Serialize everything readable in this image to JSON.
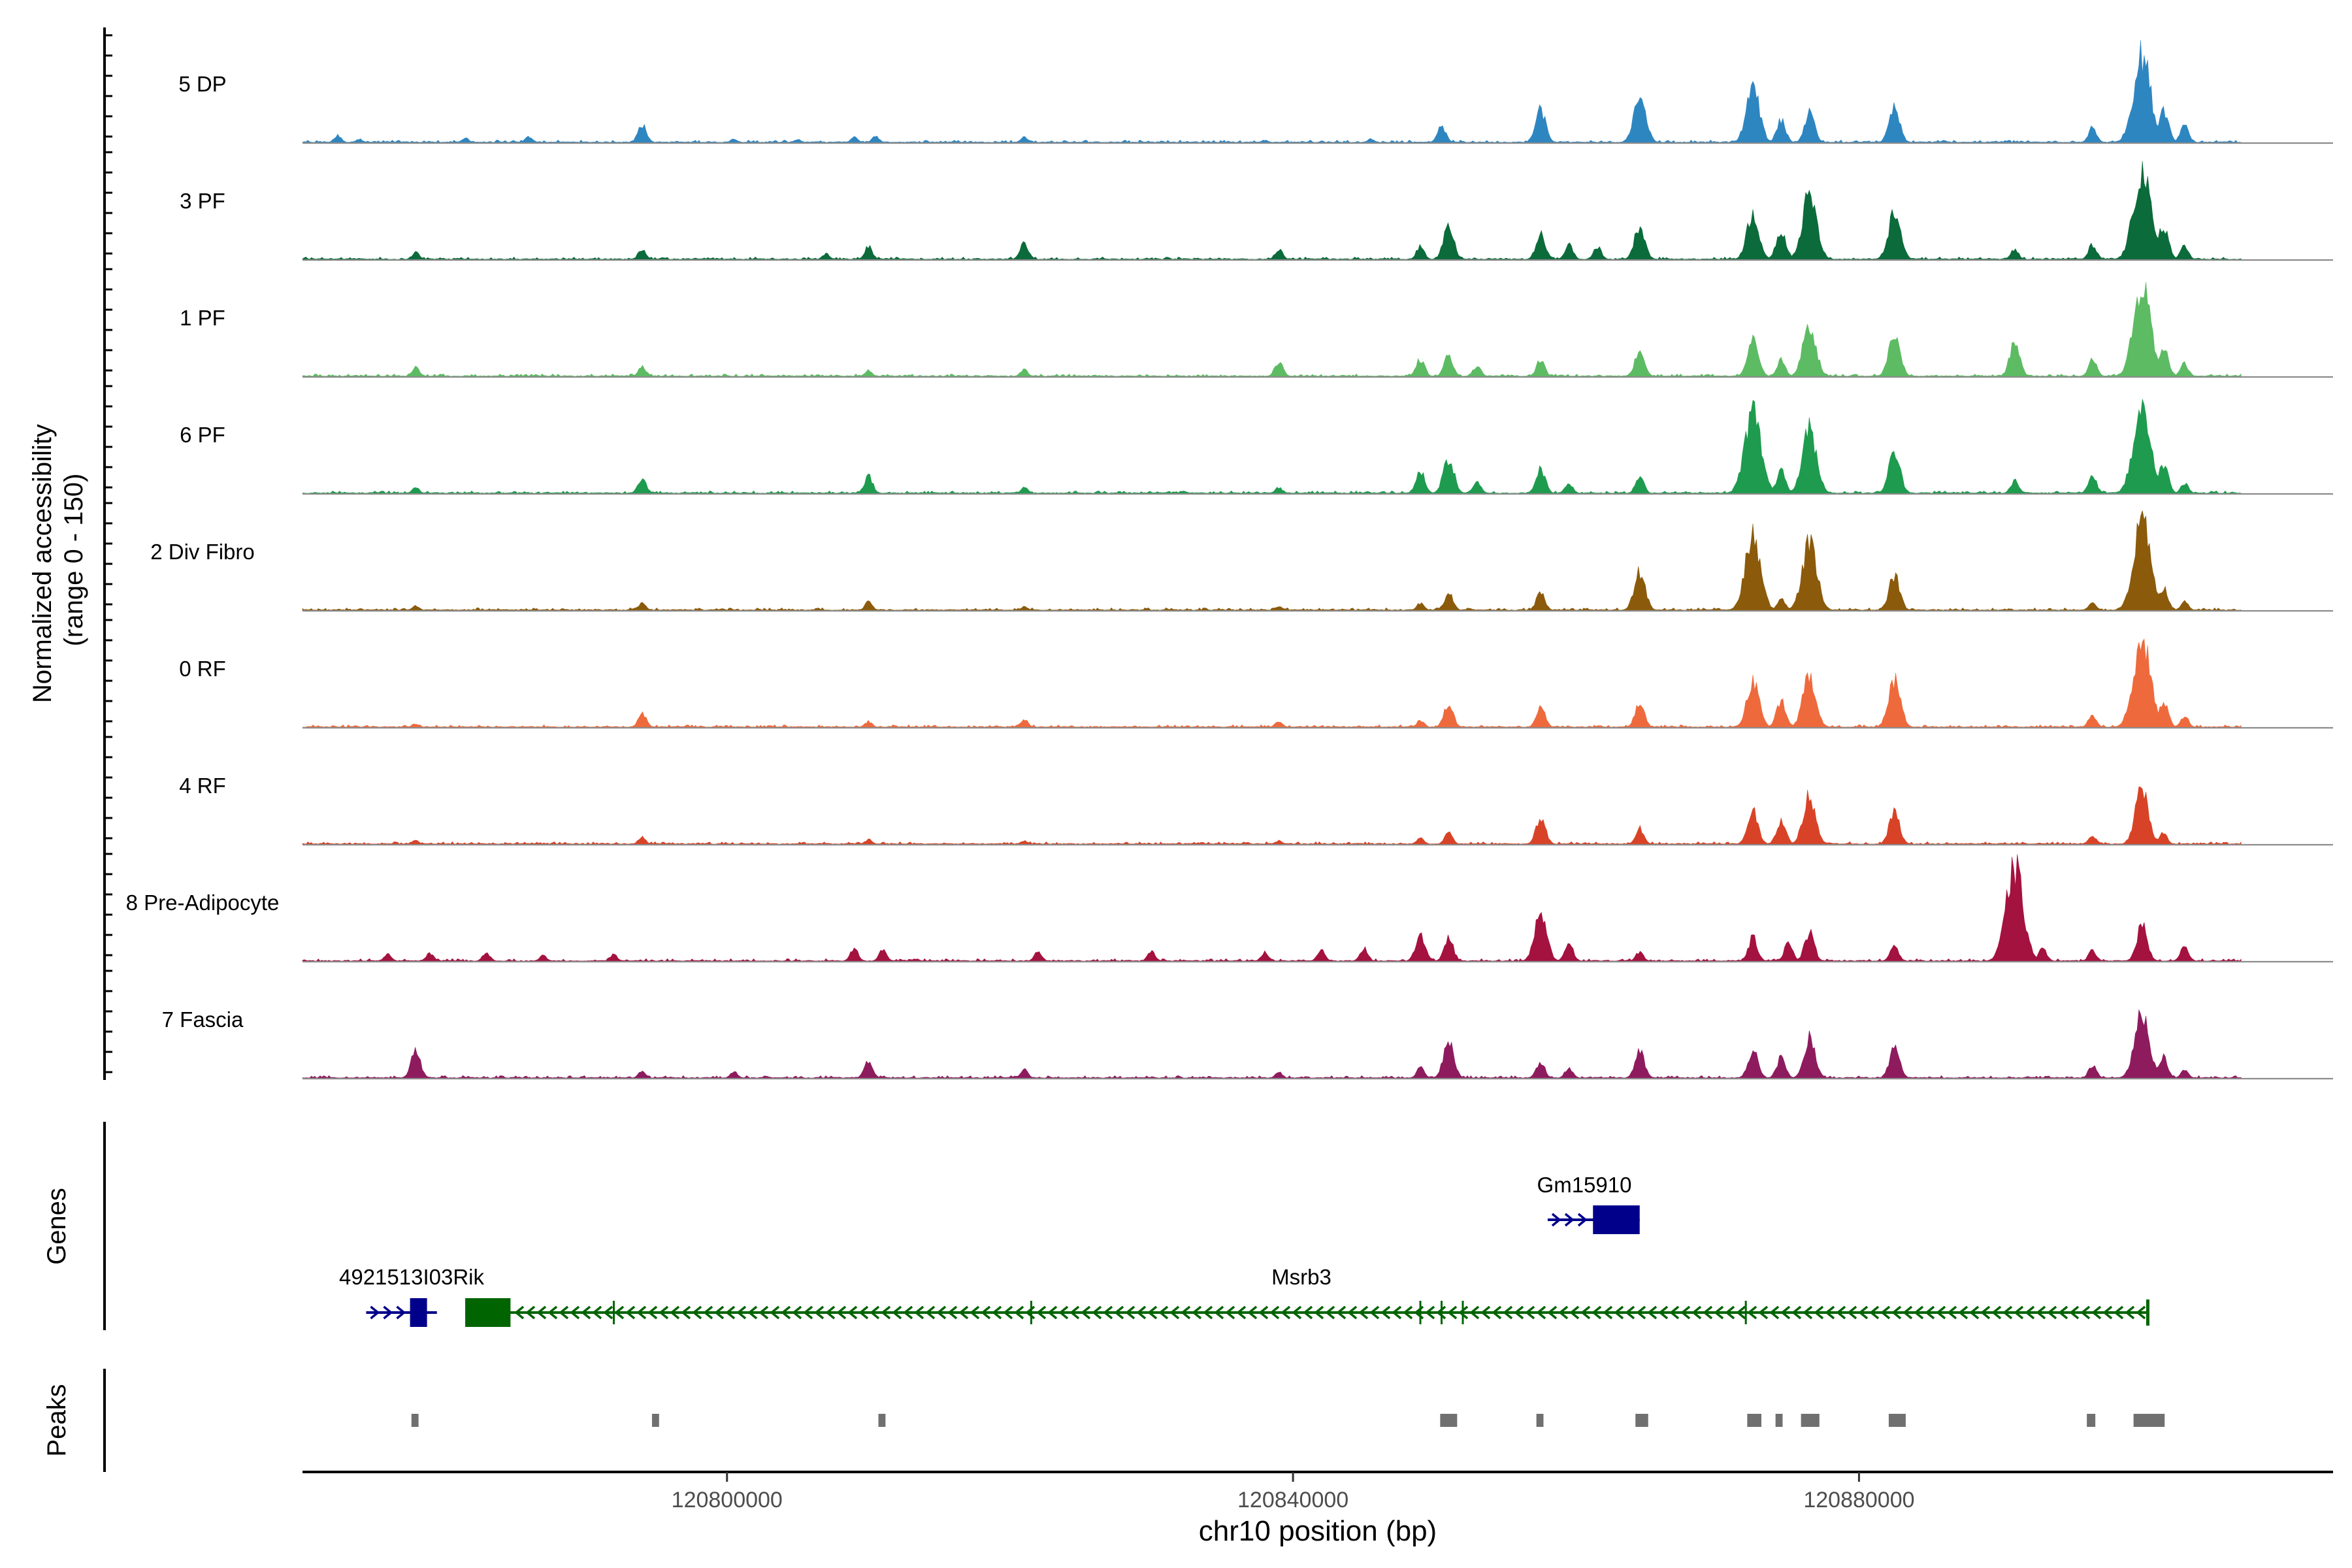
{
  "chart_data": {
    "type": "area",
    "accessibility_track": {
      "ylabel_line1": "Normalized accessibility",
      "ylabel_line2": "(range 0 - 150)",
      "ylim": [
        0,
        150
      ],
      "series": [
        {
          "name": "5 DP",
          "color": "#2E86C1",
          "peaks": [
            [
              120772500,
              12
            ],
            [
              120774000,
              6
            ],
            [
              120781500,
              8
            ],
            [
              120786000,
              10
            ],
            [
              120794000,
              30
            ],
            [
              120800500,
              6
            ],
            [
              120805000,
              5
            ],
            [
              120809000,
              9
            ],
            [
              120810500,
              10
            ],
            [
              120821000,
              9
            ],
            [
              120838000,
              4
            ],
            [
              120845500,
              6
            ],
            [
              120850500,
              28
            ],
            [
              120857500,
              55
            ],
            [
              120864500,
              80
            ],
            [
              120872500,
              95
            ],
            [
              120874500,
              38
            ],
            [
              120876500,
              50
            ],
            [
              120882500,
              58
            ],
            [
              120896500,
              25
            ],
            [
              120900000,
              150
            ],
            [
              120901500,
              55
            ],
            [
              120903000,
              30
            ]
          ]
        },
        {
          "name": "3 PF",
          "color": "#0B6B3A",
          "peaks": [
            [
              120778000,
              12
            ],
            [
              120794000,
              18
            ],
            [
              120807000,
              10
            ],
            [
              120810000,
              22
            ],
            [
              120821000,
              28
            ],
            [
              120839000,
              18
            ],
            [
              120849000,
              22
            ],
            [
              120851000,
              55
            ],
            [
              120857500,
              42
            ],
            [
              120859500,
              25
            ],
            [
              120861500,
              22
            ],
            [
              120864500,
              58
            ],
            [
              120872500,
              80
            ],
            [
              120874500,
              50
            ],
            [
              120876500,
              110
            ],
            [
              120882500,
              80
            ],
            [
              120891000,
              18
            ],
            [
              120896500,
              25
            ],
            [
              120900000,
              150
            ],
            [
              120901500,
              55
            ],
            [
              120903000,
              22
            ]
          ]
        },
        {
          "name": "1 PF",
          "color": "#5DBB63",
          "peaks": [
            [
              120778000,
              15
            ],
            [
              120794000,
              18
            ],
            [
              120810000,
              10
            ],
            [
              120821000,
              12
            ],
            [
              120839000,
              25
            ],
            [
              120849000,
              30
            ],
            [
              120851000,
              35
            ],
            [
              120853000,
              18
            ],
            [
              120857500,
              28
            ],
            [
              120864500,
              45
            ],
            [
              120872500,
              62
            ],
            [
              120874500,
              28
            ],
            [
              120876500,
              90
            ],
            [
              120882500,
              70
            ],
            [
              120891000,
              55
            ],
            [
              120896500,
              28
            ],
            [
              120900000,
              150
            ],
            [
              120901500,
              50
            ],
            [
              120903000,
              22
            ]
          ]
        },
        {
          "name": "6 PF",
          "color": "#1E9B4E",
          "peaks": [
            [
              120778000,
              10
            ],
            [
              120794000,
              25
            ],
            [
              120810000,
              30
            ],
            [
              120821000,
              10
            ],
            [
              120839000,
              10
            ],
            [
              120849000,
              38
            ],
            [
              120851000,
              60
            ],
            [
              120853000,
              22
            ],
            [
              120857500,
              42
            ],
            [
              120859500,
              18
            ],
            [
              120864500,
              28
            ],
            [
              120872500,
              140
            ],
            [
              120874500,
              38
            ],
            [
              120876500,
              110
            ],
            [
              120882500,
              70
            ],
            [
              120891000,
              22
            ],
            [
              120896500,
              30
            ],
            [
              120900000,
              150
            ],
            [
              120901500,
              50
            ],
            [
              120903000,
              18
            ]
          ]
        },
        {
          "name": "2 Div Fibro",
          "color": "#8B5A0B",
          "peaks": [
            [
              120778000,
              8
            ],
            [
              120794000,
              12
            ],
            [
              120810000,
              14
            ],
            [
              120821000,
              6
            ],
            [
              120839000,
              6
            ],
            [
              120849000,
              12
            ],
            [
              120851000,
              30
            ],
            [
              120857500,
              30
            ],
            [
              120864500,
              65
            ],
            [
              120872500,
              125
            ],
            [
              120874500,
              20
            ],
            [
              120876500,
              115
            ],
            [
              120882500,
              60
            ],
            [
              120896500,
              15
            ],
            [
              120900000,
              150
            ],
            [
              120901500,
              40
            ],
            [
              120903000,
              15
            ]
          ]
        },
        {
          "name": "0 RF",
          "color": "#EE6A3C",
          "peaks": [
            [
              120778000,
              6
            ],
            [
              120794000,
              24
            ],
            [
              120810000,
              10
            ],
            [
              120821000,
              14
            ],
            [
              120839000,
              10
            ],
            [
              120849000,
              12
            ],
            [
              120851000,
              40
            ],
            [
              120857500,
              35
            ],
            [
              120864500,
              40
            ],
            [
              120872500,
              80
            ],
            [
              120874500,
              45
            ],
            [
              120876500,
              90
            ],
            [
              120882500,
              80
            ],
            [
              120896500,
              22
            ],
            [
              120900000,
              150
            ],
            [
              120901500,
              45
            ],
            [
              120903000,
              20
            ]
          ]
        },
        {
          "name": "4 RF",
          "color": "#D84327",
          "peaks": [
            [
              120778000,
              6
            ],
            [
              120794000,
              12
            ],
            [
              120810000,
              8
            ],
            [
              120821000,
              6
            ],
            [
              120839000,
              6
            ],
            [
              120849000,
              12
            ],
            [
              120851000,
              20
            ],
            [
              120857500,
              45
            ],
            [
              120864500,
              28
            ],
            [
              120872500,
              58
            ],
            [
              120874500,
              42
            ],
            [
              120876500,
              85
            ],
            [
              120882500,
              55
            ],
            [
              120896500,
              14
            ],
            [
              120900000,
              95
            ],
            [
              120901500,
              20
            ]
          ]
        },
        {
          "name": "8 Pre-Adipocyte",
          "color": "#A4123F",
          "peaks": [
            [
              120776000,
              12
            ],
            [
              120779000,
              14
            ],
            [
              120783000,
              14
            ],
            [
              120787000,
              10
            ],
            [
              120792000,
              12
            ],
            [
              120809000,
              22
            ],
            [
              120811000,
              18
            ],
            [
              120822000,
              16
            ],
            [
              120830000,
              16
            ],
            [
              120838000,
              15
            ],
            [
              120842000,
              20
            ],
            [
              120845000,
              22
            ],
            [
              120849000,
              45
            ],
            [
              120851000,
              40
            ],
            [
              120857500,
              80
            ],
            [
              120859500,
              30
            ],
            [
              120864500,
              16
            ],
            [
              120872500,
              40
            ],
            [
              120875000,
              30
            ],
            [
              120876500,
              48
            ],
            [
              120882500,
              28
            ],
            [
              120891000,
              160
            ],
            [
              120893000,
              22
            ],
            [
              120896500,
              18
            ],
            [
              120900000,
              60
            ],
            [
              120903000,
              25
            ]
          ]
        },
        {
          "name": "7 Fascia",
          "color": "#8E1B5E",
          "peaks": [
            [
              120778000,
              45
            ],
            [
              120794000,
              12
            ],
            [
              120800500,
              12
            ],
            [
              120810000,
              30
            ],
            [
              120821000,
              14
            ],
            [
              120839000,
              10
            ],
            [
              120849000,
              18
            ],
            [
              120851000,
              60
            ],
            [
              120857500,
              28
            ],
            [
              120859500,
              18
            ],
            [
              120864500,
              45
            ],
            [
              120872500,
              48
            ],
            [
              120874500,
              35
            ],
            [
              120876500,
              68
            ],
            [
              120882500,
              52
            ],
            [
              120896500,
              22
            ],
            [
              120900000,
              115
            ],
            [
              120901500,
              35
            ],
            [
              120903000,
              15
            ]
          ]
        }
      ]
    },
    "genes_track": {
      "label": "Genes",
      "genes": [
        {
          "name": "4921513I03Rik",
          "strand": "+",
          "start": 120774500,
          "end": 120779500,
          "exons": [
            [
              120777600,
              120778800
            ]
          ],
          "color": "#00008B"
        },
        {
          "name": "Gm15910",
          "strand": "+",
          "start": 120858000,
          "end": 120864500,
          "exons": [
            [
              120861200,
              120864500
            ]
          ],
          "color": "#00008B"
        },
        {
          "name": "Msrb3",
          "strand": "-",
          "start": 120781500,
          "end": 120900500,
          "exons": [
            [
              120781500,
              120784700
            ]
          ],
          "color": "#006400"
        }
      ]
    },
    "peaks_track": {
      "label": "Peaks",
      "color": "#707070",
      "intervals": [
        [
          120777700,
          120778200
        ],
        [
          120794700,
          120795200
        ],
        [
          120810700,
          120811200
        ],
        [
          120850400,
          120851600
        ],
        [
          120857200,
          120857700
        ],
        [
          120864200,
          120865100
        ],
        [
          120872100,
          120873100
        ],
        [
          120874100,
          120874600
        ],
        [
          120875900,
          120877200
        ],
        [
          120882100,
          120883300
        ],
        [
          120896100,
          120896700
        ],
        [
          120899400,
          120901600
        ]
      ]
    },
    "x_axis": {
      "xlabel": "chr10 position (bp)",
      "xlim": [
        120770000,
        120913500
      ],
      "ticks": [
        120800000,
        120840000,
        120880000
      ],
      "tick_labels": [
        "120800000",
        "120840000",
        "120880000"
      ]
    },
    "data_extent": [
      120770000,
      120907000
    ]
  }
}
